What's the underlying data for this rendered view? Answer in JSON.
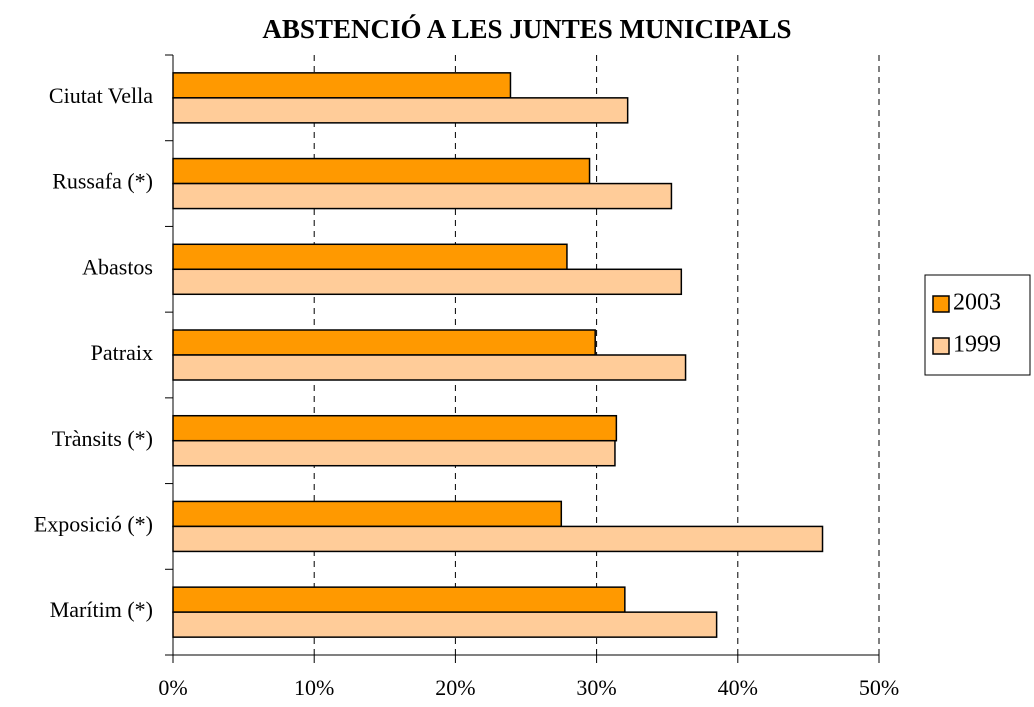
{
  "chart_data": {
    "type": "barh",
    "title": "ABSTENCIÓ A LES JUNTES MUNICIPALS",
    "categories": [
      "Ciutat Vella",
      "Russafa (*)",
      "Abastos",
      "Patraix",
      "Trànsits (*)",
      "Exposició (*)",
      "Marítim (*)"
    ],
    "series": [
      {
        "name": "2003",
        "color": "#ff9900",
        "values": [
          23.9,
          29.5,
          27.9,
          29.9,
          31.4,
          27.5,
          32.0
        ]
      },
      {
        "name": "1999",
        "color": "#ffcc99",
        "values": [
          32.2,
          35.3,
          36.0,
          36.3,
          31.3,
          46.0,
          38.5
        ]
      }
    ],
    "xlim": [
      0,
      50
    ],
    "xticks": [
      {
        "value": 0,
        "label": "0%"
      },
      {
        "value": 10,
        "label": "10%"
      },
      {
        "value": 20,
        "label": "20%"
      },
      {
        "value": 30,
        "label": "30%"
      },
      {
        "value": 40,
        "label": "40%"
      },
      {
        "value": 50,
        "label": "50%"
      }
    ],
    "grid": true,
    "legend": "right"
  }
}
